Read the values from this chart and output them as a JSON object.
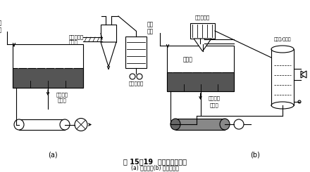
{
  "title_main": "图 15－19  流化床干燥装置",
  "title_sub": "(a) 开启式；(b) 封闭循环式",
  "label_a": "(a)",
  "label_b": "(b)",
  "bg_color": "#ffffff",
  "line_color": "#000000",
  "gray_fill": "#888888",
  "light_gray": "#cccccc"
}
